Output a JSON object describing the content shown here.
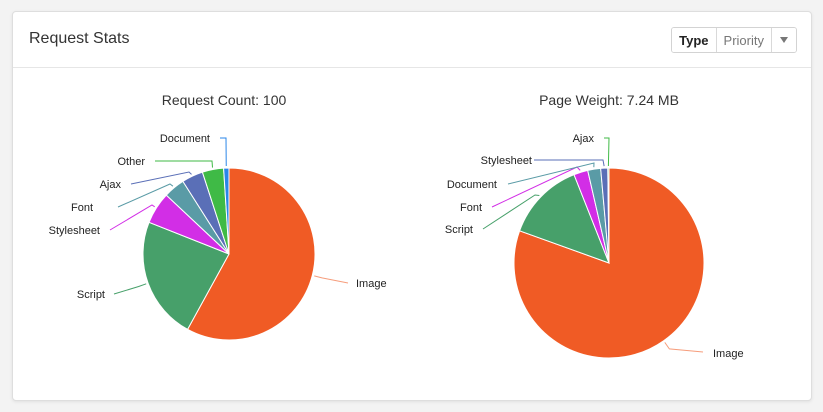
{
  "card": {
    "title": "Request Stats",
    "toggle": {
      "options": [
        "Type",
        "Priority"
      ],
      "active": "Type",
      "dropdown_icon": "caret-down-icon"
    }
  },
  "chart_data": [
    {
      "type": "pie",
      "title": "Request Count: 100",
      "categories": [
        "Image",
        "Script",
        "Stylesheet",
        "Font",
        "Ajax",
        "Other",
        "Document"
      ],
      "values": [
        58,
        23,
        6,
        4,
        4,
        4,
        1
      ],
      "colors": [
        "#f05b25",
        "#47a06a",
        "#d22ee6",
        "#5a9ba6",
        "#5a6fb7",
        "#3fba46",
        "#2a86e8"
      ],
      "legend": "outside labels with leader lines"
    },
    {
      "type": "pie",
      "title": "Page Weight: 7.24 MB",
      "categories": [
        "Image",
        "Script",
        "Font",
        "Document",
        "Stylesheet",
        "Ajax"
      ],
      "values": [
        80.5,
        13.5,
        2.4,
        2.2,
        1.2,
        0.2
      ],
      "colors": [
        "#f05b25",
        "#47a06a",
        "#d22ee6",
        "#5a9ba6",
        "#5a6fb7",
        "#3fba46"
      ],
      "legend": "outside labels with leader lines"
    }
  ]
}
